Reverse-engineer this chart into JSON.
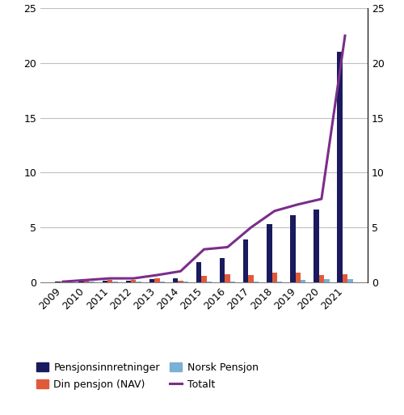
{
  "years": [
    2009,
    2010,
    2011,
    2012,
    2013,
    2014,
    2015,
    2016,
    2017,
    2018,
    2019,
    2020,
    2021
  ],
  "pensjonsinnretninger": [
    0.03,
    0.08,
    0.15,
    0.15,
    0.25,
    0.35,
    1.8,
    2.2,
    3.9,
    5.3,
    6.1,
    6.6,
    21.0
  ],
  "din_pensjon_nav": [
    0.05,
    0.12,
    0.18,
    0.18,
    0.35,
    0.12,
    0.55,
    0.75,
    0.65,
    0.85,
    0.85,
    0.65,
    0.75
  ],
  "norsk_pensjon": [
    0.0,
    0.03,
    0.03,
    0.03,
    0.03,
    0.08,
    0.08,
    0.03,
    0.08,
    0.08,
    0.18,
    0.25,
    0.25
  ],
  "totalt": [
    0.05,
    0.2,
    0.35,
    0.35,
    0.65,
    1.0,
    3.0,
    3.2,
    5.0,
    6.5,
    7.1,
    7.6,
    22.5
  ],
  "bar_color_pensjons": "#1a1a5e",
  "bar_color_nav": "#e05a3a",
  "bar_color_norsk": "#7ab0d4",
  "line_color_totalt": "#7b2d8b",
  "ylim": [
    0,
    25
  ],
  "yticks": [
    0,
    5,
    10,
    15,
    20,
    25
  ],
  "legend_labels": [
    "Pensjonsinnretninger",
    "Din pensjon (NAV)",
    "Norsk Pensjon",
    "Totalt"
  ],
  "background_color": "#ffffff",
  "grid_color": "#c0c0c0"
}
